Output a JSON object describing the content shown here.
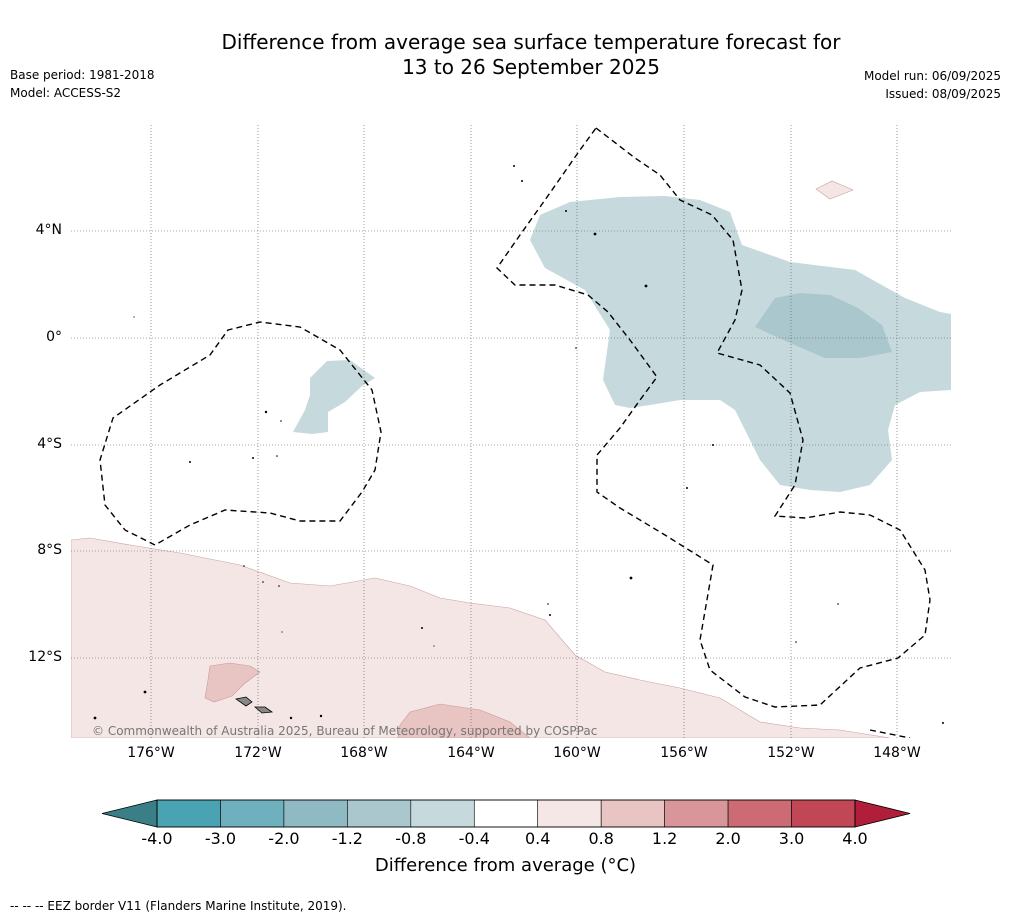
{
  "title_line1": "Difference from average sea surface temperature forecast for",
  "title_line2": "13 to 26 September 2025",
  "base_period": "Base period: 1981-2018",
  "model": "Model: ACCESS-S2",
  "model_run": "Model run: 06/09/2025",
  "issued": "Issued: 08/09/2025",
  "map": {
    "lat_labels": [
      "4°N",
      "0°",
      "4°S",
      "8°S",
      "12°S"
    ],
    "lon_labels": [
      "176°W",
      "172°W",
      "168°W",
      "164°W",
      "160°W",
      "156°W",
      "152°W",
      "148°W"
    ],
    "copyright": "© Commonwealth of Australia 2025, Bureau of Meteorology, supported by COSPPac"
  },
  "colorbar": {
    "labels": [
      "-4.0",
      "-3.0",
      "-2.0",
      "-1.2",
      "-0.8",
      "-0.4",
      "0.4",
      "0.8",
      "1.2",
      "2.0",
      "3.0",
      "4.0"
    ],
    "colors": [
      "#3a7f87",
      "#4aa3b3",
      "#6eb0be",
      "#8fbac4",
      "#a9c7cd",
      "#c6d9dd",
      "#ffffff",
      "#f5e7e6",
      "#e8c5c2",
      "#d8969a",
      "#cc6b74",
      "#c14656",
      "#b01e3a"
    ],
    "title": "Difference from average (°C)"
  },
  "footer": "--  --  -- EEZ border V11 (Flanders Marine Institute, 2019)."
}
